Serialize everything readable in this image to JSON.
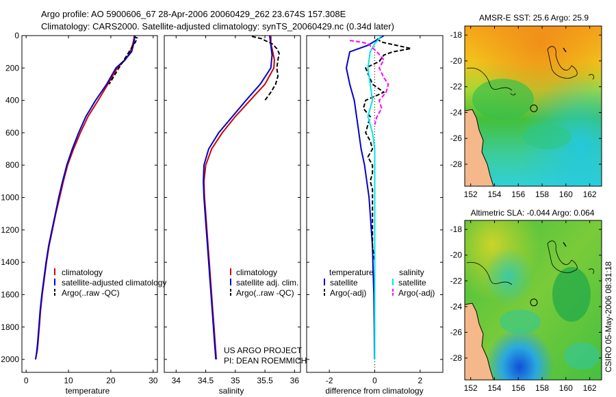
{
  "header": {
    "title_line1": "Argo profile: AO 5900606_67 28-Apr-2006 20060429_262 23.674S 157.308E",
    "title_line2": "Climatology: CARS2000. Satellite-adjusted climatology: synTS_20060429.nc (0.34d later)"
  },
  "colors": {
    "climatology": "#cc0000",
    "satellite": "#0000cc",
    "argo": "#000000",
    "sal_satellite": "#00e5e5",
    "sal_argo": "#ff00ff"
  },
  "chart_data": [
    {
      "type": "line",
      "id": "temperature",
      "xlabel": "temperature",
      "ylabel": "",
      "xlim": [
        -1,
        31
      ],
      "ylim": [
        2080,
        0
      ],
      "xticks": [
        0,
        10,
        20,
        30
      ],
      "yticks": [
        0,
        200,
        400,
        600,
        800,
        1000,
        1200,
        1400,
        1600,
        1800,
        2000
      ],
      "legend": [
        "climatology",
        "satellite-adjusted climatology",
        "Argo(..raw -QC)"
      ],
      "series": [
        {
          "name": "climatology",
          "color": "#cc0000",
          "dash": "",
          "x": [
            25.6,
            25.2,
            24.6,
            23.4,
            21.5,
            19.3,
            17.0,
            14.6,
            12.8,
            11.2,
            9.8,
            8.8,
            7.9,
            7.0,
            6.2,
            5.4,
            4.8,
            4.3,
            3.8,
            3.4,
            3.1,
            2.8,
            2.6,
            2.4,
            2.3,
            2.2
          ],
          "y": [
            0,
            50,
            100,
            150,
            200,
            300,
            400,
            500,
            600,
            700,
            800,
            900,
            1000,
            1100,
            1200,
            1300,
            1400,
            1500,
            1600,
            1700,
            1800,
            1900,
            1950,
            1975,
            1990,
            2000
          ]
        },
        {
          "name": "satellite-adjusted climatology",
          "color": "#0000cc",
          "dash": "",
          "x": [
            25.7,
            25.4,
            24.9,
            23.3,
            21.2,
            19.0,
            16.4,
            14.1,
            12.4,
            10.9,
            9.6,
            8.6,
            7.7,
            6.9,
            6.1,
            5.3,
            4.7,
            4.2,
            3.7,
            3.3,
            3.0,
            2.7,
            2.5,
            2.3,
            2.2
          ],
          "y": [
            0,
            50,
            100,
            150,
            200,
            300,
            400,
            500,
            600,
            700,
            800,
            900,
            1000,
            1100,
            1200,
            1300,
            1400,
            1500,
            1600,
            1700,
            1800,
            1900,
            1950,
            1990,
            2000
          ]
        },
        {
          "name": "Argo(..raw -QC)",
          "color": "#000000",
          "dash": "6,3",
          "x": [
            25.4,
            26.2,
            25.8,
            24.8,
            23.6,
            21.9,
            19.6
          ],
          "y": [
            5,
            15,
            40,
            80,
            130,
            200,
            300
          ]
        }
      ]
    },
    {
      "type": "line",
      "id": "salinity",
      "xlabel": "salinity",
      "ylabel": "",
      "xlim": [
        33.8,
        36.1
      ],
      "ylim": [
        2080,
        0
      ],
      "xticks": [
        34,
        34.5,
        35,
        35.5,
        36
      ],
      "yticks": [
        0,
        200,
        400,
        600,
        800,
        1000,
        1200,
        1400,
        1600,
        1800,
        2000
      ],
      "legend": [
        "climatology",
        "satellite adj. clim.",
        "Argo(..raw -QC)"
      ],
      "annotation": [
        "US ARGO PROJECT",
        "PI: DEAN ROEMMICH"
      ],
      "series": [
        {
          "name": "climatology",
          "color": "#cc0000",
          "dash": "",
          "x": [
            35.6,
            35.6,
            35.62,
            35.66,
            35.65,
            35.5,
            35.25,
            35.0,
            34.78,
            34.6,
            34.5,
            34.47,
            34.48,
            34.5,
            34.52,
            34.54,
            34.56,
            34.58,
            34.6,
            34.62,
            34.64,
            34.66,
            34.68
          ],
          "y": [
            0,
            50,
            80,
            150,
            200,
            300,
            400,
            500,
            600,
            700,
            800,
            900,
            1000,
            1100,
            1200,
            1300,
            1400,
            1500,
            1600,
            1700,
            1800,
            1900,
            2000
          ]
        },
        {
          "name": "satellite adj. clim.",
          "color": "#0000cc",
          "dash": "",
          "x": [
            35.58,
            35.6,
            35.62,
            35.6,
            35.42,
            35.18,
            34.95,
            34.72,
            34.55,
            34.47,
            34.46,
            34.47,
            34.49,
            34.51,
            34.53,
            34.55,
            34.57,
            34.59,
            34.61,
            34.63,
            34.65,
            34.67
          ],
          "y": [
            0,
            60,
            120,
            200,
            300,
            400,
            500,
            600,
            700,
            800,
            900,
            1000,
            1100,
            1200,
            1300,
            1400,
            1500,
            1600,
            1700,
            1800,
            1900,
            2000
          ]
        },
        {
          "name": "Argo(..raw -QC)",
          "color": "#000000",
          "dash": "6,3",
          "x": [
            35.28,
            35.45,
            35.5,
            35.62,
            35.7,
            35.74,
            35.72,
            35.7,
            35.72,
            35.68,
            35.6,
            35.5
          ],
          "y": [
            5,
            20,
            30,
            50,
            80,
            110,
            150,
            200,
            250,
            300,
            350,
            400
          ]
        }
      ]
    },
    {
      "type": "line",
      "id": "difference",
      "xlabel": "difference from climatology",
      "ylabel": "",
      "xlim": [
        -3.0,
        3.0
      ],
      "ylim": [
        2080,
        0
      ],
      "xticks": [
        -2,
        0,
        2
      ],
      "yticks": [
        0,
        200,
        400,
        600,
        800,
        1000,
        1200,
        1400,
        1600,
        1800,
        2000
      ],
      "legend_headers": [
        "temperature",
        "salinity"
      ],
      "legend": [
        "satellite",
        "Argo(-adj)",
        "satellite",
        "Argo(-adj)"
      ],
      "series": [
        {
          "name": "temperature satellite",
          "color": "#0000cc",
          "dash": "",
          "x": [
            0.4,
            -0.3,
            -1.1,
            -1.25,
            -1.1,
            -0.9,
            -0.8,
            -0.7,
            -0.6,
            -0.45,
            -0.35,
            -0.25,
            -0.2,
            -0.15,
            -0.1,
            -0.08,
            -0.06,
            -0.04,
            -0.02,
            -0.01
          ],
          "y": [
            0,
            60,
            100,
            200,
            300,
            400,
            500,
            600,
            700,
            800,
            900,
            1000,
            1100,
            1200,
            1300,
            1400,
            1500,
            1600,
            1800,
            2000
          ]
        },
        {
          "name": "temperature Argo(-adj)",
          "color": "#000000",
          "dash": "6,3",
          "x": [
            0.1,
            0.3,
            1.6,
            0.8,
            0.4,
            0.2,
            -0.4,
            -0.1,
            0.4,
            -0.4,
            -0.5,
            -0.2,
            -0.4,
            -0.2,
            -0.1,
            -0.3,
            -0.1,
            -0.1,
            -0.2,
            -0.1,
            -0.1,
            -0.1,
            -0.1,
            -0.1,
            0.0,
            0.0
          ],
          "y": [
            20,
            40,
            80,
            100,
            120,
            160,
            200,
            300,
            350,
            400,
            450,
            500,
            600,
            650,
            700,
            750,
            800,
            850,
            900,
            950,
            1000,
            1100,
            1200,
            1300,
            1400,
            1500
          ]
        },
        {
          "name": "salinity satellite",
          "color": "#00e5e5",
          "dash": "",
          "x": [
            0.3,
            0.0,
            -0.2,
            -0.3,
            -0.2,
            -0.1,
            -0.3,
            -0.1,
            0.0,
            0.0,
            0.0,
            0.0,
            0.0
          ],
          "y": [
            0,
            50,
            100,
            200,
            300,
            400,
            500,
            600,
            700,
            800,
            1000,
            1500,
            2000
          ]
        },
        {
          "name": "salinity Argo(-adj)",
          "color": "#ff00ff",
          "dash": "6,3",
          "x": [
            -1.1,
            -0.6,
            -0.3,
            0.1,
            0.4,
            0.2,
            0.4,
            0.6,
            0.5,
            0.2,
            0.3,
            0.1,
            0.0
          ],
          "y": [
            30,
            40,
            50,
            100,
            150,
            200,
            260,
            300,
            350,
            400,
            450,
            500,
            550
          ]
        }
      ]
    },
    {
      "type": "heatmap",
      "id": "sst_map",
      "title": "AMSR-E SST: 25.6 Argo: 25.9",
      "xticks": [
        152,
        154,
        156,
        158,
        160,
        162
      ],
      "yticks": [
        -18,
        -20,
        -22,
        -24,
        -26,
        -28
      ],
      "xlim": [
        151.5,
        163
      ],
      "ylim": [
        -29.7,
        -17.3
      ],
      "float_position": {
        "lon": 157.308,
        "lat": -23.674
      }
    },
    {
      "type": "heatmap",
      "id": "sla_map",
      "title": "Altimetric SLA: -0.044 Argo: 0.064",
      "xticks": [
        152,
        154,
        156,
        158,
        160,
        162
      ],
      "yticks": [
        -18,
        -20,
        -22,
        -24,
        -26,
        -28
      ],
      "xlim": [
        151.5,
        163
      ],
      "ylim": [
        -29.7,
        -17.3
      ],
      "float_position": {
        "lon": 157.308,
        "lat": -23.674
      }
    }
  ],
  "footer": {
    "credit": "CSIRO 05-May-2006 08:31:18"
  }
}
